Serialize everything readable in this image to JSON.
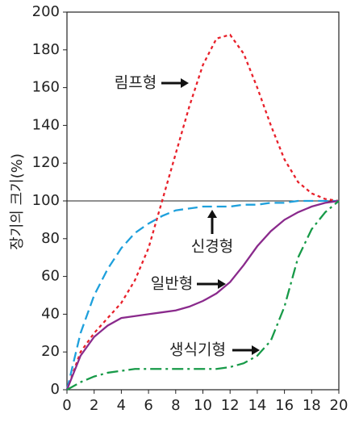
{
  "chart_data": {
    "type": "line",
    "y_label": "장기의 크기(%)",
    "x": [
      0,
      1,
      2,
      3,
      4,
      5,
      6,
      7,
      8,
      9,
      10,
      11,
      12,
      13,
      14,
      15,
      16,
      17,
      18,
      19,
      20
    ],
    "series": [
      {
        "name": "림프형",
        "color": "#e8202a",
        "dash": "4,4",
        "values": [
          0,
          20,
          30,
          38,
          46,
          58,
          75,
          100,
          125,
          150,
          172,
          186,
          188,
          178,
          160,
          140,
          122,
          110,
          104,
          101,
          100
        ]
      },
      {
        "name": "신경형",
        "color": "#1ea0dc",
        "dash": "12,6",
        "values": [
          0,
          30,
          50,
          64,
          75,
          83,
          88,
          92,
          95,
          96,
          97,
          97,
          97,
          98,
          98,
          99,
          99,
          100,
          100,
          100,
          100
        ]
      },
      {
        "name": "일반형",
        "color": "#8a2a8c",
        "dash": "",
        "values": [
          0,
          18,
          28,
          34,
          38,
          39,
          40,
          41,
          42,
          44,
          47,
          51,
          57,
          66,
          76,
          84,
          90,
          94,
          97,
          99,
          100
        ]
      },
      {
        "name": "생식기형",
        "color": "#179a48",
        "dash": "14,5,3,5",
        "values": [
          0,
          4,
          7,
          9,
          10,
          11,
          11,
          11,
          11,
          11,
          11,
          11,
          12,
          14,
          18,
          26,
          44,
          70,
          85,
          94,
          100
        ]
      }
    ],
    "reference_line": 100,
    "xlim": [
      0,
      20
    ],
    "xticks": [
      0,
      2,
      4,
      6,
      8,
      10,
      12,
      14,
      16,
      18,
      20
    ],
    "ylim": [
      0,
      200
    ],
    "yticks": [
      0,
      20,
      40,
      60,
      80,
      100,
      120,
      140,
      160,
      180,
      200
    ]
  }
}
